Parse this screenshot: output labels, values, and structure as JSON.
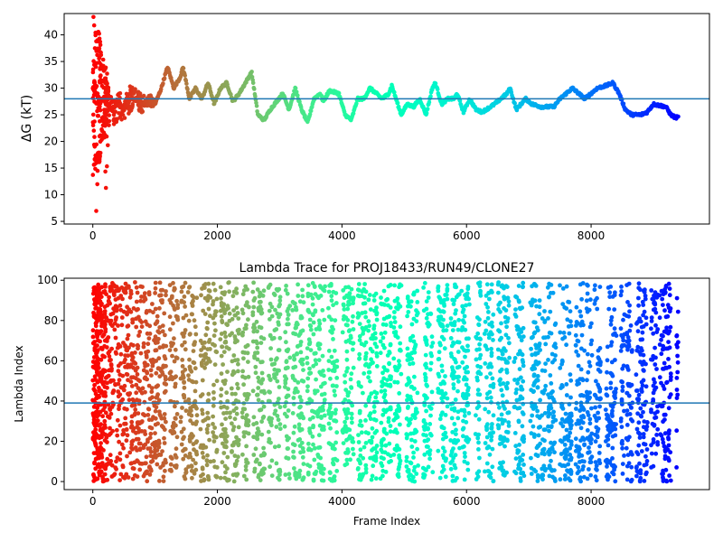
{
  "chart_data": [
    {
      "type": "scatter",
      "title": "",
      "xlabel": "",
      "ylabel": "ΔG (kT)",
      "xlim": [
        -460,
        9900
      ],
      "ylim": [
        4.5,
        44
      ],
      "xticks": [
        0,
        2000,
        4000,
        6000,
        8000
      ],
      "yticks": [
        5,
        10,
        15,
        20,
        25,
        30,
        35,
        40
      ],
      "hline": 28,
      "colormap": "rainbow (reversed: early frames red, late frames violet)",
      "trace_knots": [
        [
          0,
          30
        ],
        [
          50,
          29
        ],
        [
          100,
          28
        ],
        [
          200,
          27.5
        ],
        [
          300,
          26
        ],
        [
          400,
          27
        ],
        [
          500,
          26
        ],
        [
          600,
          28
        ],
        [
          700,
          28
        ],
        [
          800,
          27
        ],
        [
          900,
          28
        ],
        [
          1000,
          27
        ],
        [
          1100,
          30
        ],
        [
          1200,
          34
        ],
        [
          1300,
          30
        ],
        [
          1400,
          32
        ],
        [
          1450,
          34
        ],
        [
          1550,
          28
        ],
        [
          1650,
          30
        ],
        [
          1750,
          28
        ],
        [
          1850,
          31
        ],
        [
          1950,
          27
        ],
        [
          2050,
          30
        ],
        [
          2150,
          31
        ],
        [
          2250,
          27.5
        ],
        [
          2350,
          29
        ],
        [
          2450,
          31
        ],
        [
          2550,
          33
        ],
        [
          2650,
          25
        ],
        [
          2750,
          24
        ],
        [
          2850,
          26
        ],
        [
          2950,
          27.5
        ],
        [
          3050,
          29
        ],
        [
          3150,
          26
        ],
        [
          3250,
          30
        ],
        [
          3350,
          26
        ],
        [
          3450,
          23.5
        ],
        [
          3550,
          28
        ],
        [
          3650,
          29
        ],
        [
          3700,
          27.5
        ],
        [
          3800,
          29.5
        ],
        [
          3950,
          29
        ],
        [
          4050,
          25
        ],
        [
          4150,
          24
        ],
        [
          4250,
          28
        ],
        [
          4350,
          28
        ],
        [
          4450,
          30
        ],
        [
          4550,
          29
        ],
        [
          4650,
          28
        ],
        [
          4750,
          29
        ],
        [
          4800,
          30.5
        ],
        [
          4950,
          25
        ],
        [
          5050,
          27
        ],
        [
          5150,
          26.5
        ],
        [
          5250,
          28
        ],
        [
          5350,
          25
        ],
        [
          5450,
          30
        ],
        [
          5500,
          31
        ],
        [
          5600,
          27
        ],
        [
          5700,
          28
        ],
        [
          5800,
          28
        ],
        [
          5850,
          29
        ],
        [
          5950,
          25.5
        ],
        [
          6050,
          28
        ],
        [
          6150,
          26
        ],
        [
          6250,
          25.5
        ],
        [
          6450,
          27
        ],
        [
          6550,
          28
        ],
        [
          6650,
          29
        ],
        [
          6700,
          30
        ],
        [
          6800,
          26
        ],
        [
          6950,
          28
        ],
        [
          7050,
          27
        ],
        [
          7200,
          26.5
        ],
        [
          7400,
          26.5
        ],
        [
          7500,
          28
        ],
        [
          7700,
          30
        ],
        [
          7800,
          29
        ],
        [
          7900,
          28
        ],
        [
          8100,
          30
        ],
        [
          8250,
          30.5
        ],
        [
          8350,
          31
        ],
        [
          8450,
          29
        ],
        [
          8550,
          26
        ],
        [
          8650,
          25
        ],
        [
          8800,
          25
        ],
        [
          8900,
          25.5
        ],
        [
          9000,
          27
        ],
        [
          9200,
          26.5
        ],
        [
          9280,
          25
        ],
        [
          9350,
          24.5
        ],
        [
          9400,
          24.5
        ]
      ],
      "early_scatter_note": "wide spread of ΔG values (about 6–43 kT) during the first ~250 frames"
    },
    {
      "type": "scatter",
      "title": "Lambda Trace for PROJ18433/RUN49/CLONE27",
      "xlabel": "Frame Index",
      "ylabel": "Lambda Index",
      "xlim": [
        -460,
        9900
      ],
      "ylim": [
        -4,
        101
      ],
      "xticks": [
        0,
        2000,
        4000,
        6000,
        8000
      ],
      "yticks": [
        0,
        20,
        40,
        60,
        80,
        100
      ],
      "hline": 39,
      "colormap": "rainbow (reversed: early frames red, late frames violet)",
      "frames_range": [
        0,
        9400
      ],
      "lambda_range": [
        0,
        99
      ]
    }
  ]
}
